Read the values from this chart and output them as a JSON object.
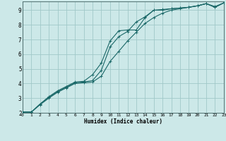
{
  "title": "",
  "xlabel": "Humidex (Indice chaleur)",
  "bg_color": "#cce8e8",
  "grid_color": "#a0c8c8",
  "line_color": "#1a6868",
  "xlim": [
    0,
    23
  ],
  "ylim": [
    2.0,
    9.6
  ],
  "xticks": [
    0,
    1,
    2,
    3,
    4,
    5,
    6,
    7,
    8,
    9,
    10,
    11,
    12,
    13,
    14,
    15,
    16,
    17,
    18,
    19,
    20,
    21,
    22,
    23
  ],
  "yticks": [
    2,
    3,
    4,
    5,
    6,
    7,
    8,
    9
  ],
  "line1_x": [
    0,
    1,
    2,
    3,
    4,
    5,
    6,
    7,
    8,
    9,
    10,
    11,
    12,
    13,
    14,
    15,
    16,
    17,
    18,
    19,
    20,
    21,
    22,
    23
  ],
  "line1_y": [
    2.05,
    2.05,
    2.6,
    3.1,
    3.5,
    3.8,
    4.1,
    4.15,
    4.6,
    5.4,
    6.9,
    7.6,
    7.65,
    7.65,
    8.5,
    9.0,
    9.0,
    9.1,
    9.15,
    9.2,
    9.3,
    9.45,
    9.2,
    9.5
  ],
  "line2_x": [
    0,
    1,
    2,
    3,
    4,
    5,
    6,
    7,
    8,
    9,
    10,
    11,
    12,
    13,
    14,
    15,
    16,
    17,
    18,
    19,
    20,
    21,
    22,
    23
  ],
  "line2_y": [
    2.05,
    2.05,
    2.6,
    3.05,
    3.45,
    3.75,
    4.05,
    4.1,
    4.2,
    4.9,
    6.5,
    7.2,
    7.55,
    8.2,
    8.55,
    9.0,
    9.05,
    9.1,
    9.15,
    9.2,
    9.3,
    9.45,
    9.2,
    9.5
  ],
  "line3_x": [
    0,
    1,
    2,
    3,
    4,
    5,
    6,
    7,
    8,
    9,
    10,
    11,
    12,
    13,
    14,
    15,
    16,
    17,
    18,
    19,
    20,
    21,
    22,
    23
  ],
  "line3_y": [
    2.05,
    2.05,
    2.55,
    3.0,
    3.4,
    3.7,
    4.0,
    4.05,
    4.1,
    4.5,
    5.5,
    6.2,
    6.9,
    7.5,
    8.1,
    8.5,
    8.8,
    9.0,
    9.1,
    9.2,
    9.3,
    9.45,
    9.25,
    9.5
  ]
}
